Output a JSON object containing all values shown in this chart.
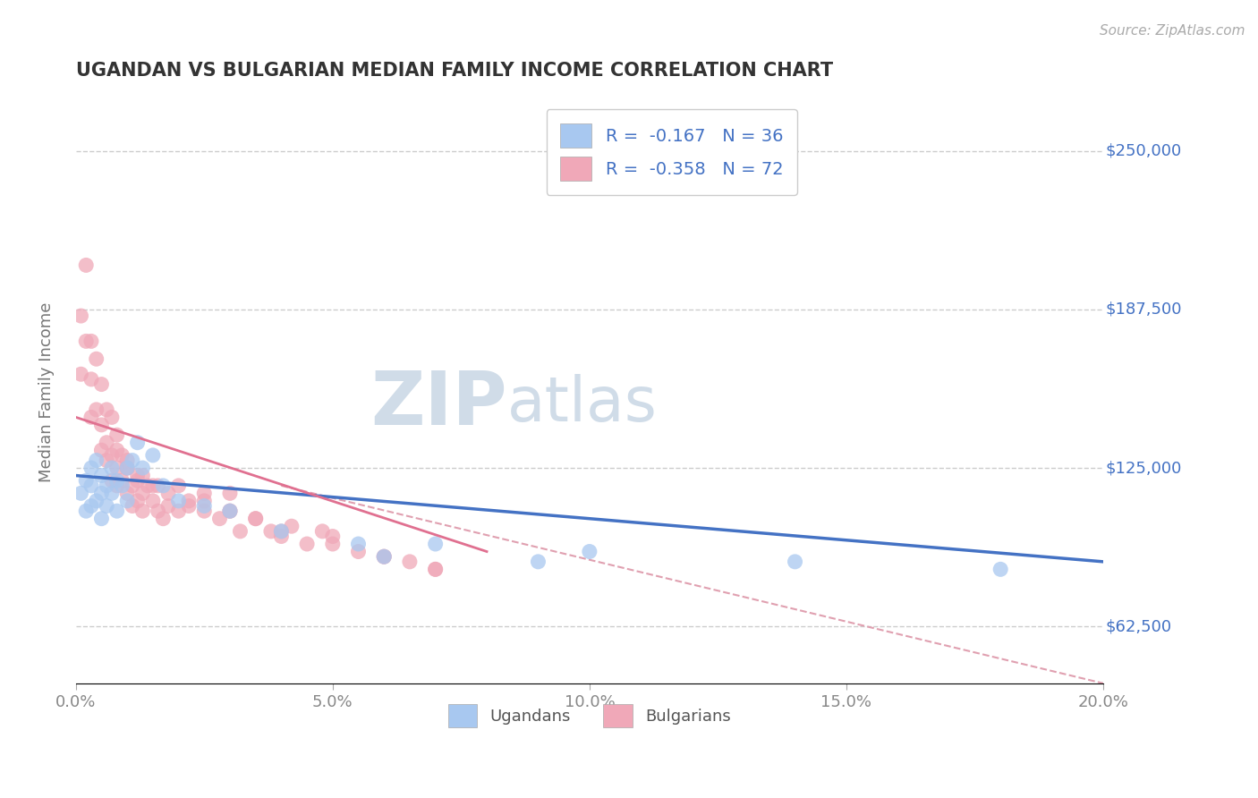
{
  "title": "UGANDAN VS BULGARIAN MEDIAN FAMILY INCOME CORRELATION CHART",
  "source_text": "Source: ZipAtlas.com",
  "ylabel": "Median Family Income",
  "xlim": [
    0.0,
    0.2
  ],
  "ylim": [
    40000,
    270000
  ],
  "yticks": [
    62500,
    125000,
    187500,
    250000
  ],
  "ytick_labels": [
    "$62,500",
    "$125,000",
    "$187,500",
    "$250,000"
  ],
  "xticks": [
    0.0,
    0.05,
    0.1,
    0.15,
    0.2
  ],
  "xtick_labels": [
    "0.0%",
    "5.0%",
    "10.0%",
    "15.0%",
    "20.0%"
  ],
  "ugandan_color": "#a8c8f0",
  "bulgarian_color": "#f0a8b8",
  "ugandan_line_color": "#4472c4",
  "bulgarian_line_color": "#e07090",
  "dashed_line_color": "#e0a0b0",
  "legend_text_color": "#4472c4",
  "axis_label_color": "#777777",
  "ytick_color": "#4472c4",
  "xtick_color": "#888888",
  "watermark_zip": "ZIP",
  "watermark_atlas": "atlas",
  "watermark_color": "#d0dce8",
  "legend_r1": "R =  -0.167   N = 36",
  "legend_r2": "R =  -0.358   N = 72",
  "legend_label1": "Ugandans",
  "legend_label2": "Bulgarians",
  "ugandan_x": [
    0.001,
    0.002,
    0.002,
    0.003,
    0.003,
    0.003,
    0.004,
    0.004,
    0.005,
    0.005,
    0.005,
    0.006,
    0.006,
    0.007,
    0.007,
    0.008,
    0.008,
    0.009,
    0.01,
    0.01,
    0.011,
    0.012,
    0.013,
    0.015,
    0.017,
    0.02,
    0.025,
    0.03,
    0.04,
    0.055,
    0.06,
    0.07,
    0.09,
    0.1,
    0.14,
    0.18
  ],
  "ugandan_y": [
    115000,
    108000,
    120000,
    118000,
    125000,
    110000,
    128000,
    112000,
    115000,
    105000,
    122000,
    118000,
    110000,
    125000,
    115000,
    120000,
    108000,
    118000,
    112000,
    125000,
    128000,
    135000,
    125000,
    130000,
    118000,
    112000,
    110000,
    108000,
    100000,
    95000,
    90000,
    95000,
    88000,
    92000,
    88000,
    85000
  ],
  "bulgarian_x": [
    0.001,
    0.001,
    0.002,
    0.002,
    0.003,
    0.003,
    0.003,
    0.004,
    0.004,
    0.005,
    0.005,
    0.005,
    0.006,
    0.006,
    0.006,
    0.007,
    0.007,
    0.007,
    0.008,
    0.008,
    0.008,
    0.009,
    0.009,
    0.01,
    0.01,
    0.011,
    0.011,
    0.012,
    0.012,
    0.013,
    0.013,
    0.014,
    0.015,
    0.016,
    0.017,
    0.018,
    0.02,
    0.022,
    0.025,
    0.025,
    0.028,
    0.03,
    0.032,
    0.035,
    0.038,
    0.04,
    0.042,
    0.045,
    0.048,
    0.05,
    0.055,
    0.06,
    0.065,
    0.07,
    0.03,
    0.035,
    0.04,
    0.05,
    0.06,
    0.07,
    0.02,
    0.025,
    0.03,
    0.01,
    0.012,
    0.015,
    0.018,
    0.022,
    0.008,
    0.01,
    0.013,
    0.016
  ],
  "bulgarian_y": [
    185000,
    162000,
    205000,
    175000,
    175000,
    160000,
    145000,
    168000,
    148000,
    158000,
    142000,
    132000,
    148000,
    135000,
    128000,
    145000,
    130000,
    120000,
    138000,
    125000,
    118000,
    130000,
    120000,
    125000,
    115000,
    118000,
    110000,
    120000,
    112000,
    115000,
    108000,
    118000,
    112000,
    108000,
    105000,
    110000,
    108000,
    112000,
    115000,
    108000,
    105000,
    108000,
    100000,
    105000,
    100000,
    98000,
    102000,
    95000,
    100000,
    95000,
    92000,
    90000,
    88000,
    85000,
    115000,
    105000,
    100000,
    98000,
    90000,
    85000,
    118000,
    112000,
    108000,
    125000,
    122000,
    118000,
    115000,
    110000,
    132000,
    128000,
    122000,
    118000
  ],
  "ugandan_trend_x": [
    0.0,
    0.2
  ],
  "ugandan_trend_y": [
    122000,
    88000
  ],
  "bulgarian_trend_x": [
    0.0,
    0.08
  ],
  "bulgarian_trend_y": [
    145000,
    92000
  ],
  "dashed_trend_x": [
    0.04,
    0.2
  ],
  "dashed_trend_y": [
    118000,
    40000
  ],
  "background_color": "#ffffff",
  "grid_color": "#cccccc"
}
